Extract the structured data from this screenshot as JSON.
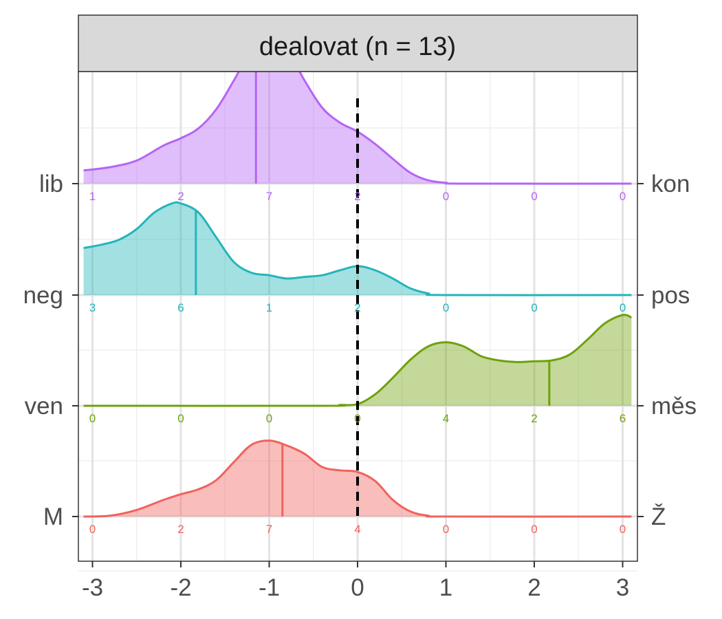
{
  "chart_data": {
    "type": "ridgeline-density",
    "panel_title": "dealovat (n = 13)",
    "x_ticks": [
      -3,
      -2,
      -1,
      0,
      1,
      2,
      3
    ],
    "x_tick_labels": [
      "-3",
      "-2",
      "-1",
      "0",
      "1",
      "2",
      "3"
    ],
    "xlim": [
      -3.1,
      3.1
    ],
    "reference_line_x": 0,
    "grid": true,
    "rows": [
      {
        "left_label": "M",
        "right_label": "Ž",
        "color": "#F0625D",
        "median": -0.85,
        "counts": [
          "0",
          "2",
          "7",
          "4",
          "0",
          "0",
          "0"
        ],
        "density": [
          [
            -3.1,
            0
          ],
          [
            -2.8,
            0.01
          ],
          [
            -2.5,
            0.08
          ],
          [
            -2.2,
            0.2
          ],
          [
            -2.0,
            0.27
          ],
          [
            -1.8,
            0.33
          ],
          [
            -1.6,
            0.44
          ],
          [
            -1.4,
            0.66
          ],
          [
            -1.2,
            0.87
          ],
          [
            -1.0,
            0.92
          ],
          [
            -0.8,
            0.86
          ],
          [
            -0.6,
            0.76
          ],
          [
            -0.4,
            0.6
          ],
          [
            -0.2,
            0.56
          ],
          [
            0.0,
            0.54
          ],
          [
            0.2,
            0.43
          ],
          [
            0.4,
            0.2
          ],
          [
            0.6,
            0.06
          ],
          [
            0.8,
            0.01
          ],
          [
            1.0,
            0
          ],
          [
            3.1,
            0
          ]
        ]
      },
      {
        "left_label": "ven",
        "right_label": "měs",
        "color": "#6FA10B",
        "median": 2.17,
        "counts": [
          "0",
          "0",
          "0",
          "0",
          "4",
          "2",
          "6"
        ],
        "density": [
          [
            -3.1,
            0
          ],
          [
            -0.4,
            0
          ],
          [
            -0.2,
            0.01
          ],
          [
            0.0,
            0.02
          ],
          [
            0.2,
            0.14
          ],
          [
            0.4,
            0.34
          ],
          [
            0.6,
            0.56
          ],
          [
            0.8,
            0.72
          ],
          [
            1.0,
            0.77
          ],
          [
            1.2,
            0.72
          ],
          [
            1.4,
            0.6
          ],
          [
            1.6,
            0.55
          ],
          [
            1.8,
            0.53
          ],
          [
            2.0,
            0.54
          ],
          [
            2.2,
            0.55
          ],
          [
            2.4,
            0.62
          ],
          [
            2.6,
            0.8
          ],
          [
            2.8,
            1.0
          ],
          [
            3.0,
            1.1
          ],
          [
            3.1,
            1.07
          ]
        ]
      },
      {
        "left_label": "neg",
        "right_label": "pos",
        "color": "#23B5BA",
        "median": -1.83,
        "counts": [
          "3",
          "6",
          "1",
          "2",
          "0",
          "0",
          "0"
        ],
        "density": [
          [
            -3.1,
            0.57
          ],
          [
            -2.9,
            0.61
          ],
          [
            -2.7,
            0.67
          ],
          [
            -2.5,
            0.8
          ],
          [
            -2.3,
            1.0
          ],
          [
            -2.1,
            1.11
          ],
          [
            -2.0,
            1.11
          ],
          [
            -1.8,
            1.0
          ],
          [
            -1.6,
            0.7
          ],
          [
            -1.4,
            0.4
          ],
          [
            -1.2,
            0.27
          ],
          [
            -1.0,
            0.24
          ],
          [
            -0.8,
            0.2
          ],
          [
            -0.6,
            0.22
          ],
          [
            -0.4,
            0.24
          ],
          [
            -0.2,
            0.3
          ],
          [
            0.0,
            0.35
          ],
          [
            0.2,
            0.3
          ],
          [
            0.4,
            0.2
          ],
          [
            0.6,
            0.08
          ],
          [
            0.8,
            0.02
          ],
          [
            1.0,
            0
          ],
          [
            3.1,
            0
          ]
        ]
      },
      {
        "left_label": "lib",
        "right_label": "kon",
        "color": "#B564F5",
        "median": -1.15,
        "counts": [
          "1",
          "2",
          "7",
          "2",
          "0",
          "0",
          "0"
        ],
        "density": [
          [
            -3.1,
            0.16
          ],
          [
            -2.8,
            0.2
          ],
          [
            -2.5,
            0.28
          ],
          [
            -2.2,
            0.46
          ],
          [
            -2.0,
            0.55
          ],
          [
            -1.8,
            0.67
          ],
          [
            -1.6,
            0.9
          ],
          [
            -1.4,
            1.25
          ],
          [
            -1.2,
            1.62
          ],
          [
            -1.0,
            1.72
          ],
          [
            -0.8,
            1.62
          ],
          [
            -0.6,
            1.25
          ],
          [
            -0.4,
            0.92
          ],
          [
            -0.2,
            0.74
          ],
          [
            0.0,
            0.63
          ],
          [
            0.2,
            0.48
          ],
          [
            0.4,
            0.3
          ],
          [
            0.6,
            0.13
          ],
          [
            0.8,
            0.04
          ],
          [
            1.0,
            0.01
          ],
          [
            1.2,
            0
          ],
          [
            3.1,
            0
          ]
        ]
      }
    ]
  }
}
